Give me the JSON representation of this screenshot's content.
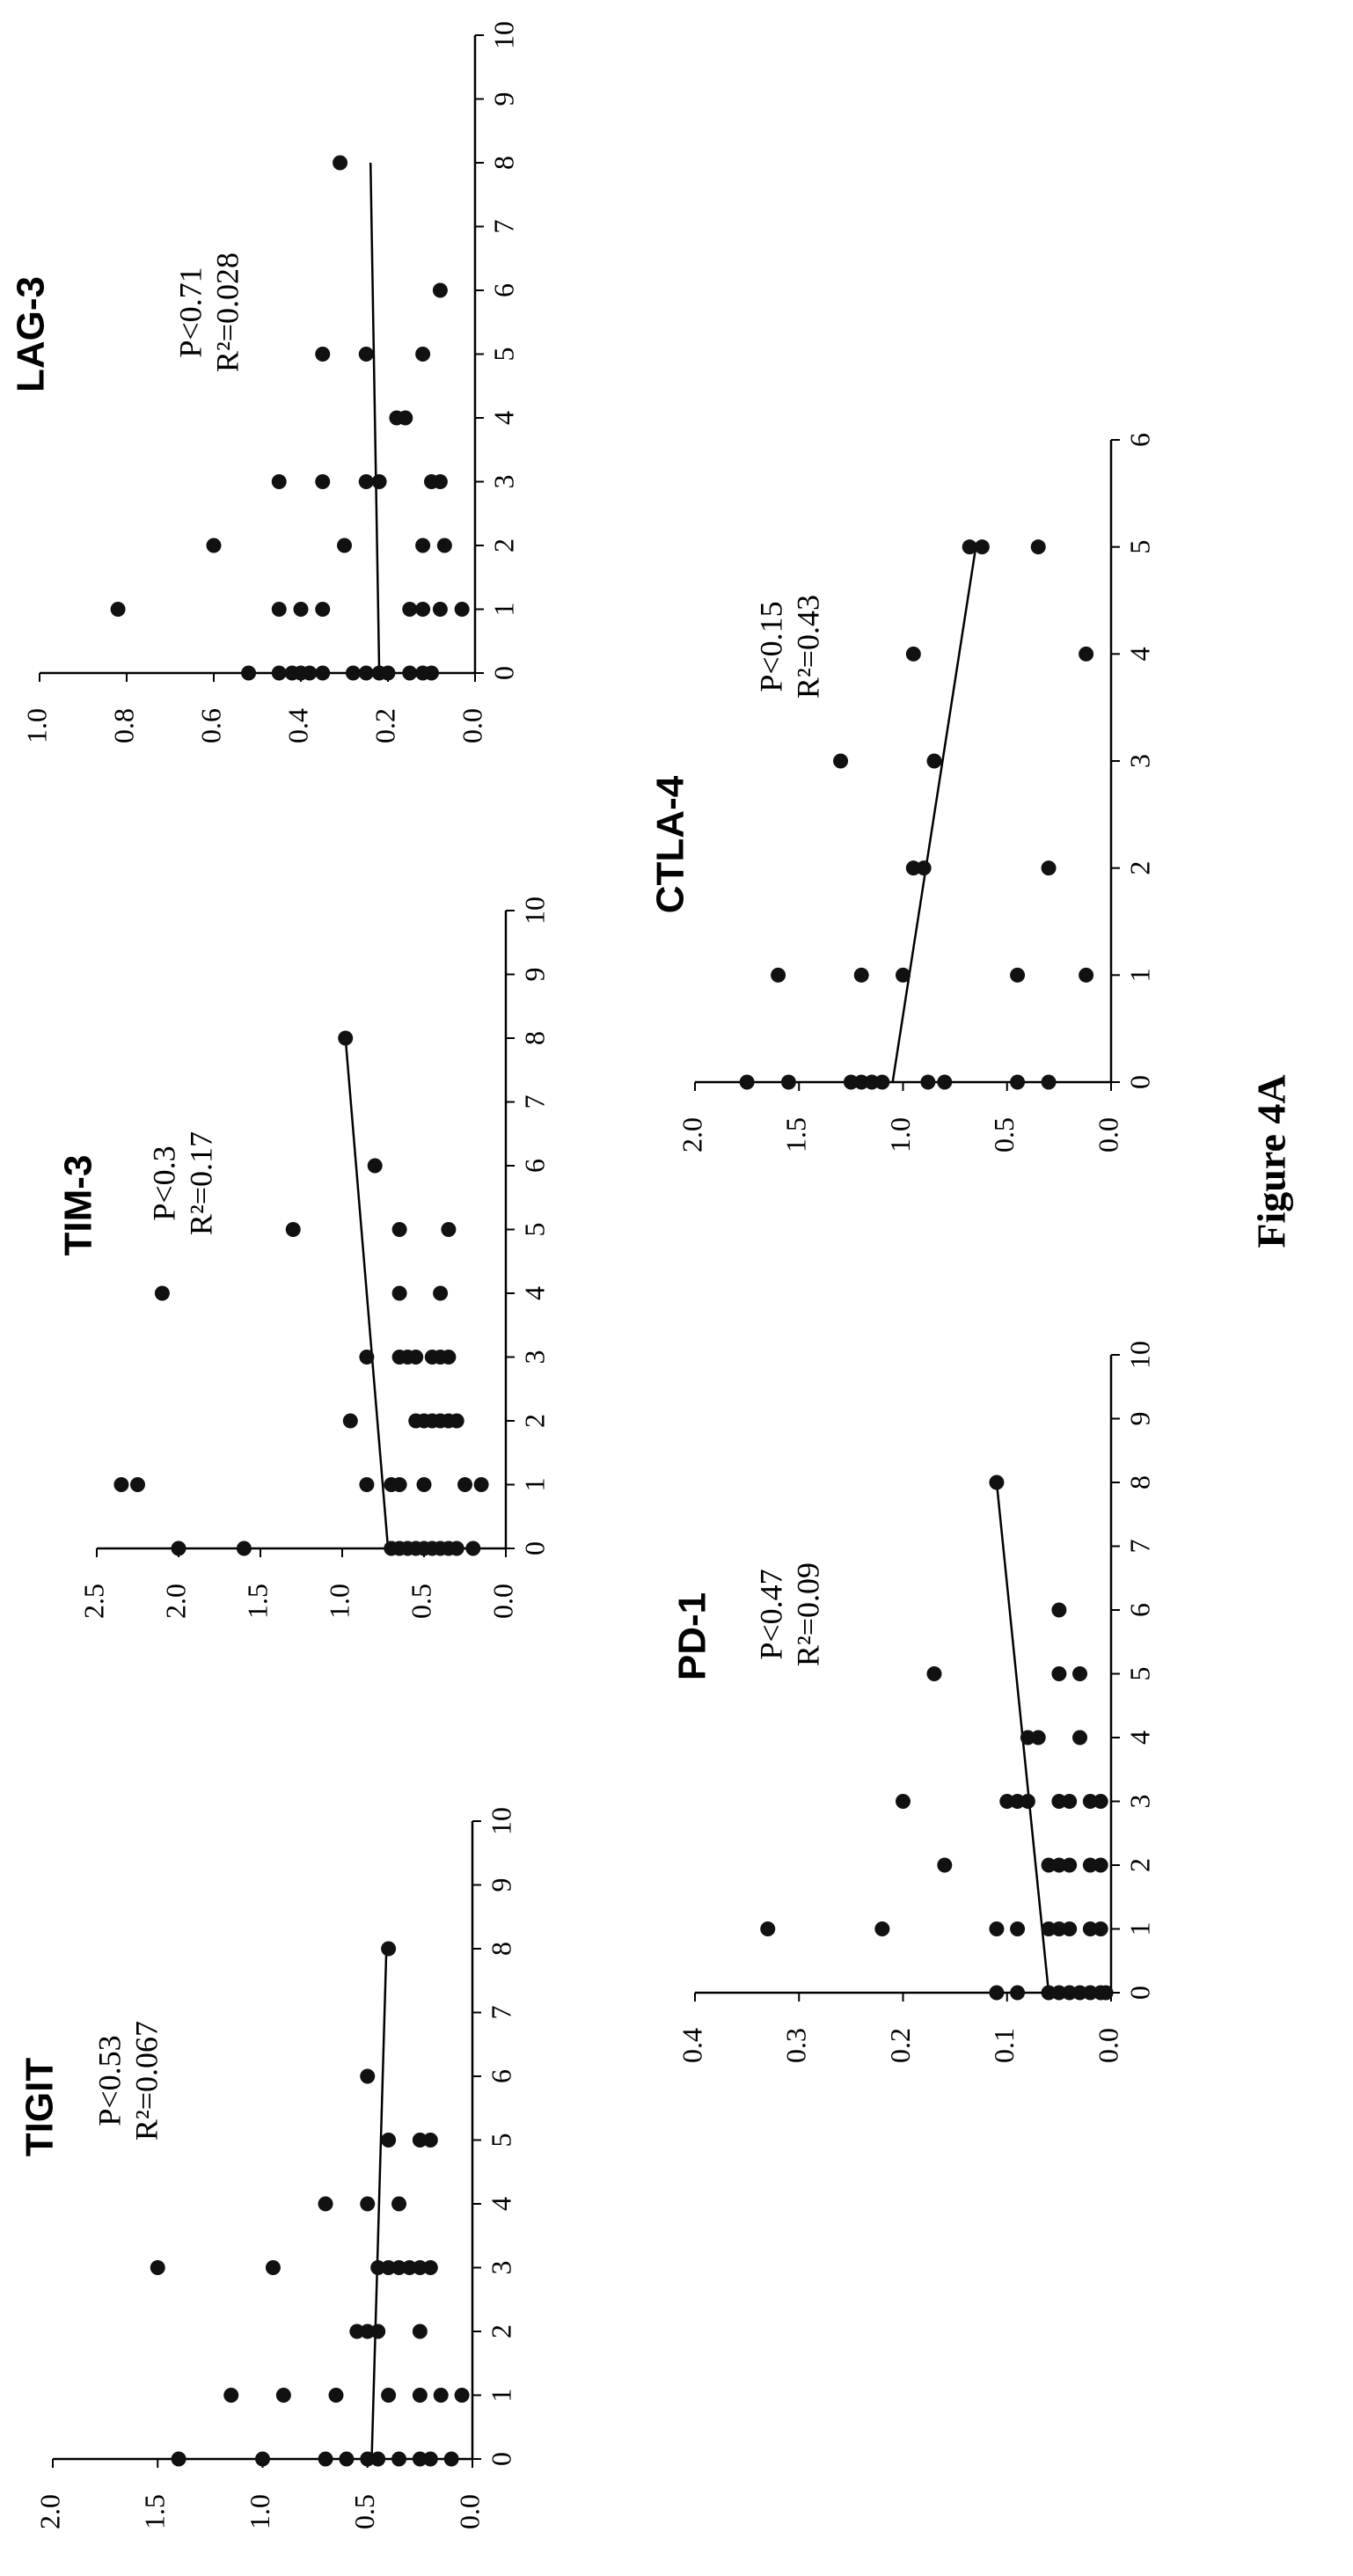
{
  "figure_caption": "Figure 4A",
  "chart_data": [
    {
      "type": "scatter",
      "title": "TIGIT",
      "stats": {
        "p": "P<0.53",
        "r2": "R²=0.067"
      },
      "xlim": [
        0,
        10
      ],
      "xticks": [
        "0",
        "1",
        "2",
        "3",
        "4",
        "5",
        "6",
        "7",
        "8",
        "9",
        "10"
      ],
      "ylim": [
        0,
        2
      ],
      "yticks": [
        "0.0",
        "0.5",
        "1.0",
        "1.5",
        "2.0"
      ],
      "points": [
        [
          0,
          1.4
        ],
        [
          0,
          1.0
        ],
        [
          0,
          0.7
        ],
        [
          0,
          0.6
        ],
        [
          0,
          0.5
        ],
        [
          0,
          0.45
        ],
        [
          0,
          0.35
        ],
        [
          0,
          0.25
        ],
        [
          0,
          0.2
        ],
        [
          0,
          0.1
        ],
        [
          1,
          1.15
        ],
        [
          1,
          0.9
        ],
        [
          1,
          0.65
        ],
        [
          1,
          0.4
        ],
        [
          1,
          0.25
        ],
        [
          1,
          0.15
        ],
        [
          1,
          0.05
        ],
        [
          2,
          0.55
        ],
        [
          2,
          0.5
        ],
        [
          2,
          0.45
        ],
        [
          2,
          0.25
        ],
        [
          3,
          1.5
        ],
        [
          3,
          0.95
        ],
        [
          3,
          0.45
        ],
        [
          3,
          0.4
        ],
        [
          3,
          0.35
        ],
        [
          3,
          0.3
        ],
        [
          3,
          0.25
        ],
        [
          3,
          0.2
        ],
        [
          4,
          0.7
        ],
        [
          4,
          0.5
        ],
        [
          4,
          0.35
        ],
        [
          5,
          0.4
        ],
        [
          5,
          0.25
        ],
        [
          5,
          0.2
        ],
        [
          6,
          0.5
        ],
        [
          8,
          0.4
        ]
      ],
      "trend": [
        [
          0,
          0.48
        ],
        [
          8,
          0.41
        ]
      ]
    },
    {
      "type": "scatter",
      "title": "TIM-3",
      "stats": {
        "p": "P<0.3",
        "r2": "R²=0.17"
      },
      "xlim": [
        0,
        10
      ],
      "xticks": [
        "0",
        "1",
        "2",
        "3",
        "4",
        "5",
        "6",
        "7",
        "8",
        "9",
        "10"
      ],
      "ylim": [
        0,
        2.5
      ],
      "yticks": [
        "0.0",
        "0.5",
        "1.0",
        "1.5",
        "2.0",
        "2.5"
      ],
      "points": [
        [
          0,
          2.0
        ],
        [
          0,
          1.6
        ],
        [
          0,
          0.7
        ],
        [
          0,
          0.65
        ],
        [
          0,
          0.6
        ],
        [
          0,
          0.55
        ],
        [
          0,
          0.5
        ],
        [
          0,
          0.45
        ],
        [
          0,
          0.4
        ],
        [
          0,
          0.35
        ],
        [
          0,
          0.3
        ],
        [
          0,
          0.2
        ],
        [
          1,
          2.35
        ],
        [
          1,
          2.25
        ],
        [
          1,
          0.85
        ],
        [
          1,
          0.7
        ],
        [
          1,
          0.65
        ],
        [
          1,
          0.5
        ],
        [
          1,
          0.25
        ],
        [
          1,
          0.15
        ],
        [
          2,
          0.95
        ],
        [
          2,
          0.55
        ],
        [
          2,
          0.5
        ],
        [
          2,
          0.45
        ],
        [
          2,
          0.4
        ],
        [
          2,
          0.35
        ],
        [
          2,
          0.3
        ],
        [
          3,
          0.85
        ],
        [
          3,
          0.65
        ],
        [
          3,
          0.6
        ],
        [
          3,
          0.55
        ],
        [
          3,
          0.45
        ],
        [
          3,
          0.4
        ],
        [
          3,
          0.35
        ],
        [
          4,
          2.1
        ],
        [
          4,
          0.65
        ],
        [
          4,
          0.4
        ],
        [
          5,
          1.3
        ],
        [
          5,
          0.65
        ],
        [
          5,
          0.35
        ],
        [
          6,
          0.8
        ],
        [
          8,
          0.98
        ]
      ],
      "trend": [
        [
          0,
          0.72
        ],
        [
          8,
          0.98
        ]
      ]
    },
    {
      "type": "scatter",
      "title": "LAG-3",
      "stats": {
        "p": "P<0.71",
        "r2": "R²=0.028"
      },
      "xlim": [
        0,
        10
      ],
      "xticks": [
        "0",
        "1",
        "2",
        "3",
        "4",
        "5",
        "6",
        "7",
        "8",
        "9",
        "10"
      ],
      "ylim": [
        0,
        1.0
      ],
      "yticks": [
        "0.0",
        "0.2",
        "0.4",
        "0.6",
        "0.8",
        "1.0"
      ],
      "points": [
        [
          0,
          0.52
        ],
        [
          0,
          0.45
        ],
        [
          0,
          0.42
        ],
        [
          0,
          0.4
        ],
        [
          0,
          0.38
        ],
        [
          0,
          0.35
        ],
        [
          0,
          0.28
        ],
        [
          0,
          0.25
        ],
        [
          0,
          0.22
        ],
        [
          0,
          0.2
        ],
        [
          0,
          0.15
        ],
        [
          0,
          0.12
        ],
        [
          0,
          0.1
        ],
        [
          1,
          0.82
        ],
        [
          1,
          0.45
        ],
        [
          1,
          0.4
        ],
        [
          1,
          0.35
        ],
        [
          1,
          0.15
        ],
        [
          1,
          0.12
        ],
        [
          1,
          0.08
        ],
        [
          1,
          0.03
        ],
        [
          2,
          0.6
        ],
        [
          2,
          0.3
        ],
        [
          2,
          0.12
        ],
        [
          2,
          0.07
        ],
        [
          3,
          0.45
        ],
        [
          3,
          0.35
        ],
        [
          3,
          0.25
        ],
        [
          3,
          0.22
        ],
        [
          3,
          0.1
        ],
        [
          3,
          0.08
        ],
        [
          4,
          0.18
        ],
        [
          4,
          0.16
        ],
        [
          5,
          0.35
        ],
        [
          5,
          0.25
        ],
        [
          5,
          0.12
        ],
        [
          6,
          0.08
        ],
        [
          8,
          0.31
        ]
      ],
      "trend": [
        [
          0,
          0.22
        ],
        [
          8,
          0.24
        ]
      ]
    },
    {
      "type": "scatter",
      "title": "PD-1",
      "stats": {
        "p": "P<0.47",
        "r2": "R²=0.09"
      },
      "xlim": [
        0,
        10
      ],
      "xticks": [
        "0",
        "1",
        "2",
        "3",
        "4",
        "5",
        "6",
        "7",
        "8",
        "9",
        "10"
      ],
      "ylim": [
        0,
        0.4
      ],
      "yticks": [
        "0.0",
        "0.1",
        "0.2",
        "0.3",
        "0.4"
      ],
      "points": [
        [
          0,
          0.11
        ],
        [
          0,
          0.09
        ],
        [
          0,
          0.06
        ],
        [
          0,
          0.05
        ],
        [
          0,
          0.04
        ],
        [
          0,
          0.03
        ],
        [
          0,
          0.02
        ],
        [
          0,
          0.01
        ],
        [
          0,
          0.005
        ],
        [
          1,
          0.33
        ],
        [
          1,
          0.22
        ],
        [
          1,
          0.11
        ],
        [
          1,
          0.09
        ],
        [
          1,
          0.06
        ],
        [
          1,
          0.05
        ],
        [
          1,
          0.04
        ],
        [
          1,
          0.02
        ],
        [
          1,
          0.01
        ],
        [
          2,
          0.16
        ],
        [
          2,
          0.06
        ],
        [
          2,
          0.05
        ],
        [
          2,
          0.04
        ],
        [
          2,
          0.02
        ],
        [
          2,
          0.01
        ],
        [
          3,
          0.2
        ],
        [
          3,
          0.1
        ],
        [
          3,
          0.09
        ],
        [
          3,
          0.08
        ],
        [
          3,
          0.05
        ],
        [
          3,
          0.04
        ],
        [
          3,
          0.02
        ],
        [
          3,
          0.01
        ],
        [
          4,
          0.08
        ],
        [
          4,
          0.07
        ],
        [
          4,
          0.03
        ],
        [
          5,
          0.17
        ],
        [
          5,
          0.05
        ],
        [
          5,
          0.03
        ],
        [
          6,
          0.05
        ],
        [
          8,
          0.11
        ]
      ],
      "trend": [
        [
          0,
          0.06
        ],
        [
          8,
          0.11
        ]
      ]
    },
    {
      "type": "scatter",
      "title": "CTLA-4",
      "stats": {
        "p": "P<0.15",
        "r2": "R²=0.43"
      },
      "xlim": [
        0,
        6
      ],
      "xticks": [
        "0",
        "1",
        "2",
        "3",
        "4",
        "5",
        "6"
      ],
      "ylim": [
        0,
        2.0
      ],
      "yticks": [
        "0.0",
        "0.5",
        "1.0",
        "1.5",
        "2.0"
      ],
      "points": [
        [
          0,
          1.75
        ],
        [
          0,
          1.55
        ],
        [
          0,
          1.25
        ],
        [
          0,
          1.2
        ],
        [
          0,
          1.15
        ],
        [
          0,
          1.1
        ],
        [
          0,
          0.88
        ],
        [
          0,
          0.8
        ],
        [
          0,
          0.45
        ],
        [
          0,
          0.3
        ],
        [
          1,
          1.6
        ],
        [
          1,
          1.2
        ],
        [
          1,
          1.0
        ],
        [
          1,
          0.45
        ],
        [
          1,
          0.12
        ],
        [
          2,
          0.95
        ],
        [
          2,
          0.9
        ],
        [
          2,
          0.3
        ],
        [
          3,
          1.3
        ],
        [
          3,
          0.85
        ],
        [
          4,
          0.95
        ],
        [
          4,
          0.12
        ],
        [
          5,
          0.68
        ],
        [
          5,
          0.62
        ],
        [
          5,
          0.35
        ]
      ],
      "trend": [
        [
          0,
          1.05
        ],
        [
          5,
          0.65
        ]
      ]
    }
  ]
}
